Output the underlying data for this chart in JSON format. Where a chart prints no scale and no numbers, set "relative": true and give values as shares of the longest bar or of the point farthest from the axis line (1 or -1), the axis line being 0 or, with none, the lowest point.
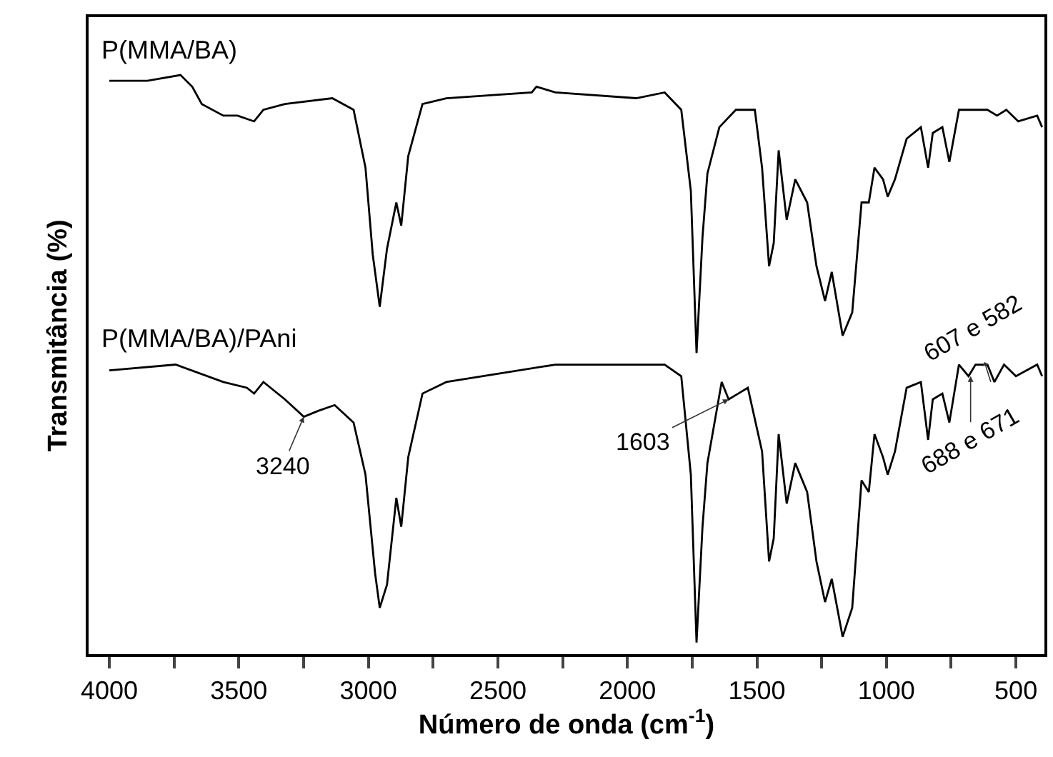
{
  "chart_data": {
    "type": "line",
    "relative": true,
    "xlabel": "Número de onda (cm$^{-1}$)",
    "ylabel": "Transmitância (%)",
    "xlim": [
      4080,
      390
    ],
    "xticks": [
      4000,
      {
        "value": 3750,
        "label": null
      },
      3500,
      {
        "value": 3250,
        "label": null
      },
      3000,
      {
        "value": 2750,
        "label": null
      },
      2500,
      {
        "value": 2250,
        "label": null
      },
      2000,
      {
        "value": 1750,
        "label": null
      },
      1500,
      {
        "value": 1250,
        "label": null
      },
      1000,
      {
        "value": 750,
        "label": null
      },
      500
    ],
    "legend": false,
    "marker": "none",
    "line_style": "solid",
    "series": [
      {
        "name": "P(MMA/BA)",
        "color": "#000000",
        "x": [
          4000,
          3853,
          3725,
          3680,
          3643,
          3560,
          3505,
          3441,
          3405,
          3322,
          3139,
          3057,
          3011,
          2983,
          2956,
          2928,
          2892,
          2873,
          2846,
          2791,
          2699,
          2369,
          2351,
          2278,
          1966,
          1856,
          1792,
          1755,
          1733,
          1710,
          1691,
          1645,
          1581,
          1508,
          1480,
          1453,
          1435,
          1416,
          1385,
          1352,
          1306,
          1270,
          1237,
          1211,
          1169,
          1132,
          1096,
          1068,
          1046,
          1013,
          995,
          967,
          922,
          867,
          839,
          821,
          784,
          757,
          720,
          610,
          573,
          537,
          491,
          418,
          399
        ],
        "values": [
          0.99,
          0.99,
          1.0,
          0.98,
          0.95,
          0.93,
          0.93,
          0.92,
          0.94,
          0.95,
          0.96,
          0.94,
          0.84,
          0.69,
          0.6,
          0.7,
          0.78,
          0.74,
          0.86,
          0.95,
          0.96,
          0.97,
          0.98,
          0.97,
          0.96,
          0.97,
          0.94,
          0.8,
          0.52,
          0.72,
          0.83,
          0.91,
          0.94,
          0.94,
          0.84,
          0.67,
          0.71,
          0.87,
          0.75,
          0.82,
          0.78,
          0.67,
          0.61,
          0.66,
          0.55,
          0.59,
          0.78,
          0.78,
          0.84,
          0.82,
          0.79,
          0.82,
          0.89,
          0.91,
          0.84,
          0.9,
          0.91,
          0.85,
          0.94,
          0.94,
          0.93,
          0.94,
          0.92,
          0.93,
          0.91
        ]
      },
      {
        "name": "P(MMA/BA)/PAni",
        "color": "#000000",
        "x": [
          4000,
          3744,
          3560,
          3469,
          3441,
          3405,
          3322,
          3249,
          3194,
          3130,
          3057,
          3011,
          2974,
          2956,
          2928,
          2892,
          2873,
          2846,
          2791,
          2699,
          2278,
          1966,
          1856,
          1792,
          1755,
          1733,
          1710,
          1691,
          1636,
          1609,
          1572,
          1535,
          1480,
          1453,
          1435,
          1416,
          1385,
          1352,
          1306,
          1270,
          1237,
          1211,
          1169,
          1132,
          1096,
          1068,
          1046,
          1013,
          995,
          967,
          922,
          867,
          839,
          821,
          784,
          757,
          720,
          683,
          656,
          610,
          583,
          546,
          500,
          418,
          399
        ],
        "values": [
          0.49,
          0.5,
          0.47,
          0.46,
          0.45,
          0.47,
          0.44,
          0.41,
          0.42,
          0.43,
          0.4,
          0.31,
          0.14,
          0.08,
          0.12,
          0.27,
          0.22,
          0.34,
          0.45,
          0.47,
          0.5,
          0.5,
          0.5,
          0.48,
          0.31,
          0.02,
          0.22,
          0.33,
          0.47,
          0.44,
          0.45,
          0.46,
          0.35,
          0.16,
          0.2,
          0.38,
          0.26,
          0.33,
          0.28,
          0.16,
          0.09,
          0.13,
          0.03,
          0.08,
          0.3,
          0.28,
          0.38,
          0.34,
          0.31,
          0.35,
          0.46,
          0.47,
          0.37,
          0.44,
          0.45,
          0.4,
          0.5,
          0.48,
          0.5,
          0.5,
          0.47,
          0.5,
          0.48,
          0.5,
          0.48
        ]
      }
    ],
    "annotations": [
      {
        "text": "3240",
        "x": 3249,
        "y": 0.41
      },
      {
        "text": "1603",
        "x": 1609,
        "y": 0.44
      },
      {
        "text": "688 e 671",
        "x": 675,
        "y": 0.48
      },
      {
        "text": "607 e 582",
        "x": 597,
        "y": 0.47
      }
    ]
  }
}
